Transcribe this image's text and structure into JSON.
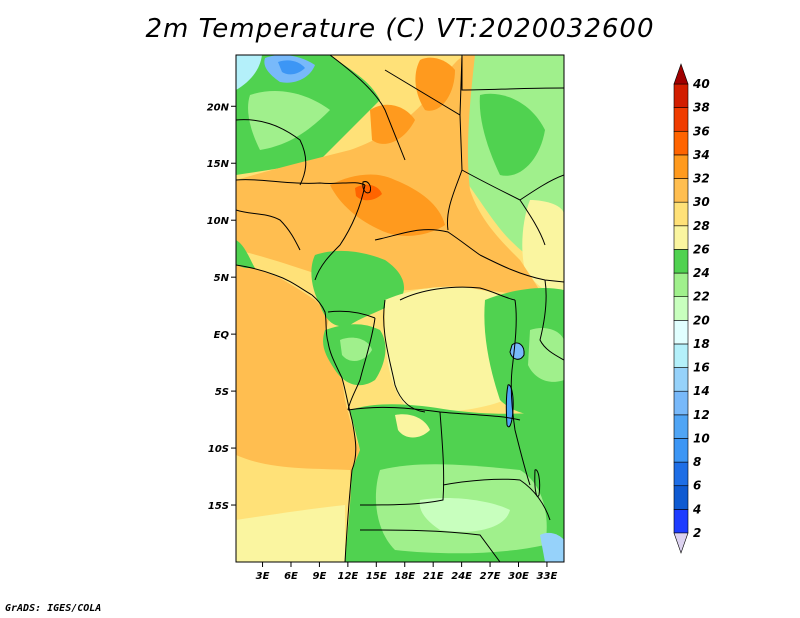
{
  "title": "2m Temperature (C) VT:2020032600",
  "credit": "GrADS: IGES/COLA",
  "map": {
    "lat_labels": [
      "20N",
      "15N",
      "10N",
      "5N",
      "EQ",
      "5S",
      "10S",
      "15S"
    ],
    "lat_values": [
      20,
      15,
      10,
      5,
      0,
      -5,
      -10,
      -15
    ],
    "lon_labels": [
      "3E",
      "6E",
      "9E",
      "12E",
      "15E",
      "18E",
      "21E",
      "24E",
      "27E",
      "30E",
      "33E"
    ],
    "lon_values": [
      3,
      6,
      9,
      12,
      15,
      18,
      21,
      24,
      27,
      30,
      33
    ],
    "lat_range": [
      -20,
      24.5
    ],
    "lon_range": [
      0.2,
      34.8
    ]
  },
  "colorbar": {
    "levels": [
      "2",
      "4",
      "6",
      "8",
      "10",
      "12",
      "14",
      "16",
      "18",
      "20",
      "22",
      "24",
      "26",
      "28",
      "30",
      "32",
      "34",
      "36",
      "38",
      "40"
    ],
    "colors": [
      "#a000c8",
      "#1e3cff",
      "#0f5ad2",
      "#1e6ee6",
      "#3c96f5",
      "#50a5f5",
      "#78b9fa",
      "#96d2fa",
      "#b4f0fa",
      "#e1ffff",
      "#c8ffbe",
      "#a0f08c",
      "#50d250",
      "#faf5a0",
      "#ffe178",
      "#ffbe50",
      "#ff9a1e",
      "#ff6400",
      "#f03c00",
      "#d21e00",
      "#a00000"
    ],
    "under_color": "#dcd2f0",
    "over_color": "#a00000"
  }
}
